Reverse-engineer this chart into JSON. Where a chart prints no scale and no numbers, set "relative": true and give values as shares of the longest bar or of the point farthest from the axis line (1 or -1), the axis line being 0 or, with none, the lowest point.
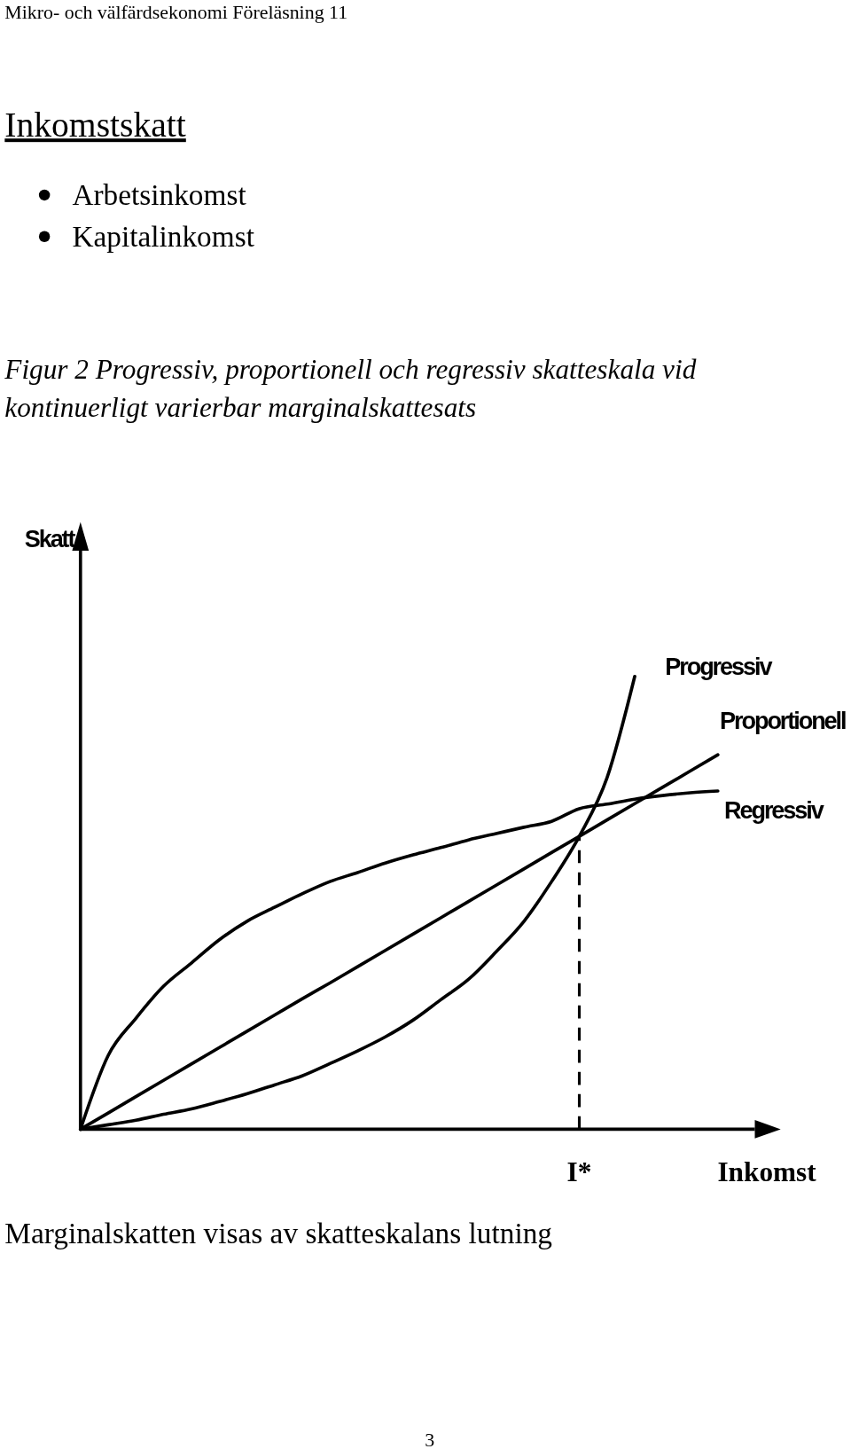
{
  "chart_data": {
    "type": "line",
    "relative": true,
    "title": "Figur 2  Progressiv, proportionell och regressiv skatteskala vid kontinuerligt varierbar marginalskattesats",
    "xlabel": "Inkomst",
    "categories": [
      null,
      null,
      null,
      null,
      null,
      null,
      null,
      null,
      null,
      null,
      null,
      null,
      null,
      null,
      null,
      null,
      null,
      null,
      null,
      null,
      null,
      null,
      null,
      null,
      null
    ],
    "series": [
      {
        "name": "Progressiv",
        "color": "#000000",
        "values": [
          0,
          0.01,
          0.02,
          0.033,
          0.045,
          0.061,
          0.078,
          0.098,
          0.118,
          0.145,
          0.173,
          0.204,
          0.241,
          0.286,
          0.331,
          0.392,
          0.459,
          0.547,
          0.647,
          0.776,
          1,
          null,
          null,
          null,
          null
        ]
      },
      {
        "name": "Proportionell",
        "color": "#000000",
        "values": [
          0,
          0.036,
          0.072,
          0.108,
          0.144,
          0.18,
          0.216,
          0.252,
          0.288,
          0.323,
          0.359,
          0.395,
          0.431,
          0.467,
          0.503,
          0.539,
          0.575,
          0.611,
          0.647,
          0.683,
          0.719,
          0.755,
          0.791,
          0.827,
          null
        ]
      },
      {
        "name": "Regressiv",
        "color": "#000000",
        "values": [
          0,
          0.163,
          0.245,
          0.316,
          0.367,
          0.418,
          0.459,
          0.49,
          0.52,
          0.547,
          0.567,
          0.588,
          0.606,
          0.622,
          0.639,
          0.653,
          0.667,
          0.68,
          0.708,
          0.718,
          0.729,
          0.737,
          0.743,
          0.747,
          null
        ]
      }
    ],
    "annotations": [
      "Mikro- och välfärdsekonomi   Föreläsning 11",
      "Inkomstskatt",
      "Arbetsinkomst",
      "Kapitalinkomst",
      "Marginalskatten visas av skatteskalans lutning",
      "3",
      {
        "text": "I*",
        "y": 0.647
      },
      "Skatt"
    ]
  }
}
